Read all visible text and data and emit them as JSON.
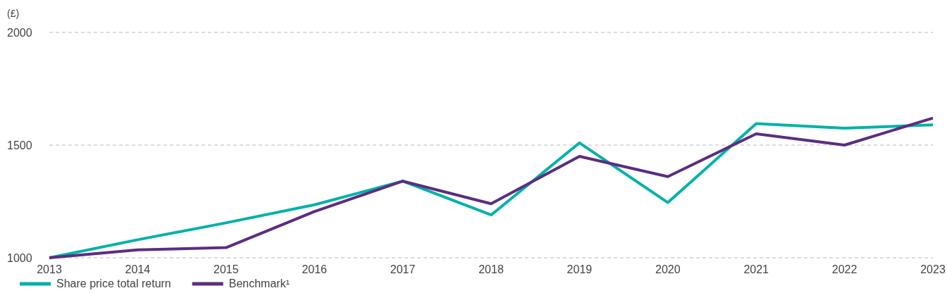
{
  "chart_data": {
    "type": "line",
    "ylabel": "(£)",
    "categories": [
      "2013",
      "2014",
      "2015",
      "2016",
      "2017",
      "2018",
      "2019",
      "2020",
      "2021",
      "2022",
      "2023"
    ],
    "series": [
      {
        "name": "Share price total return",
        "color": "#00b2a9",
        "values": [
          1000,
          1080,
          1155,
          1235,
          1340,
          1190,
          1510,
          1245,
          1595,
          1575,
          1590
        ]
      },
      {
        "name": "Benchmark¹",
        "color": "#5c2d82",
        "values": [
          1000,
          1035,
          1045,
          1205,
          1340,
          1240,
          1450,
          1360,
          1550,
          1500,
          1620
        ]
      }
    ],
    "ylim": [
      1000,
      2000
    ],
    "yticks": [
      1000,
      1500,
      2000
    ],
    "grid": "y",
    "legend": "bottom left",
    "line_style": "solid",
    "marker": "none"
  }
}
